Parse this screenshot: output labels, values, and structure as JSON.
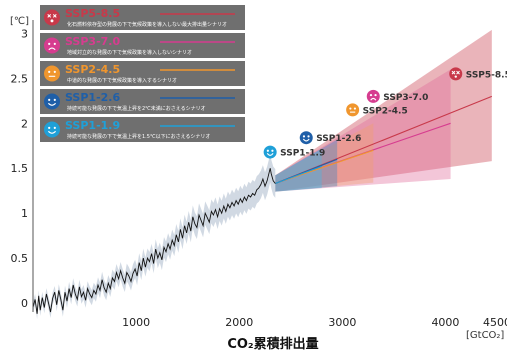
{
  "chart_data": {
    "type": "line",
    "title": "",
    "xlabel": "CO₂累積排出量",
    "x_unit": "[GtCO₂]",
    "ylabel": "",
    "y_unit": "[℃]",
    "xlim": [
      0,
      4500
    ],
    "ylim": [
      -0.1,
      3.15
    ],
    "x_ticks": [
      {
        "value": 1000,
        "label": "1000"
      },
      {
        "value": 2000,
        "label": "2000"
      },
      {
        "value": 3000,
        "label": "3000"
      },
      {
        "value": 4000,
        "label": "4000"
      },
      {
        "value": 4500,
        "label": "4500"
      }
    ],
    "y_ticks": [
      {
        "value": 0,
        "label": "0"
      },
      {
        "value": 0.5,
        "label": "0.5"
      },
      {
        "value": 1,
        "label": "1"
      },
      {
        "value": 1.5,
        "label": "1.5"
      },
      {
        "value": 2,
        "label": "2"
      },
      {
        "value": 2.5,
        "label": "2.5"
      },
      {
        "value": 3,
        "label": "3"
      }
    ],
    "grid": "none",
    "legend_position": "top-left",
    "historical": {
      "color": "#111111",
      "band_color": "#b8c4d4",
      "points": [
        [
          0,
          -0.05
        ],
        [
          20,
          0.04
        ],
        [
          40,
          -0.12
        ],
        [
          55,
          0.08
        ],
        [
          70,
          -0.08
        ],
        [
          90,
          0.06
        ],
        [
          110,
          -0.05
        ],
        [
          130,
          0.1
        ],
        [
          150,
          0.0
        ],
        [
          170,
          -0.1
        ],
        [
          190,
          0.05
        ],
        [
          210,
          0.12
        ],
        [
          230,
          -0.02
        ],
        [
          250,
          0.14
        ],
        [
          270,
          0.04
        ],
        [
          290,
          -0.08
        ],
        [
          310,
          0.12
        ],
        [
          330,
          0.02
        ],
        [
          350,
          0.16
        ],
        [
          370,
          0.06
        ],
        [
          390,
          0.2
        ],
        [
          410,
          0.1
        ],
        [
          430,
          0.04
        ],
        [
          450,
          0.18
        ],
        [
          470,
          0.07
        ],
        [
          490,
          0.12
        ],
        [
          510,
          0.03
        ],
        [
          530,
          0.16
        ],
        [
          550,
          0.1
        ],
        [
          570,
          0.06
        ],
        [
          590,
          0.14
        ],
        [
          610,
          0.1
        ],
        [
          630,
          0.2
        ],
        [
          650,
          0.14
        ],
        [
          670,
          0.26
        ],
        [
          690,
          0.17
        ],
        [
          710,
          0.12
        ],
        [
          730,
          0.22
        ],
        [
          750,
          0.16
        ],
        [
          770,
          0.28
        ],
        [
          790,
          0.24
        ],
        [
          810,
          0.34
        ],
        [
          830,
          0.27
        ],
        [
          850,
          0.36
        ],
        [
          870,
          0.28
        ],
        [
          890,
          0.22
        ],
        [
          910,
          0.34
        ],
        [
          930,
          0.3
        ],
        [
          950,
          0.24
        ],
        [
          970,
          0.33
        ],
        [
          990,
          0.38
        ],
        [
          1010,
          0.3
        ],
        [
          1030,
          0.45
        ],
        [
          1050,
          0.36
        ],
        [
          1070,
          0.5
        ],
        [
          1090,
          0.4
        ],
        [
          1110,
          0.5
        ],
        [
          1130,
          0.46
        ],
        [
          1150,
          0.55
        ],
        [
          1170,
          0.44
        ],
        [
          1190,
          0.6
        ],
        [
          1210,
          0.5
        ],
        [
          1230,
          0.56
        ],
        [
          1250,
          0.48
        ],
        [
          1270,
          0.62
        ],
        [
          1290,
          0.57
        ],
        [
          1310,
          0.66
        ],
        [
          1330,
          0.6
        ],
        [
          1350,
          0.7
        ],
        [
          1370,
          0.64
        ],
        [
          1390,
          0.76
        ],
        [
          1410,
          0.68
        ],
        [
          1430,
          0.82
        ],
        [
          1450,
          0.72
        ],
        [
          1470,
          0.86
        ],
        [
          1490,
          0.78
        ],
        [
          1510,
          0.9
        ],
        [
          1530,
          0.8
        ],
        [
          1550,
          0.96
        ],
        [
          1570,
          0.88
        ],
        [
          1590,
          0.84
        ],
        [
          1610,
          0.98
        ],
        [
          1630,
          0.92
        ],
        [
          1650,
          0.86
        ],
        [
          1670,
          1.0
        ],
        [
          1690,
          0.95
        ],
        [
          1710,
          0.9
        ],
        [
          1730,
          1.02
        ],
        [
          1750,
          0.98
        ],
        [
          1770,
          1.04
        ],
        [
          1790,
          0.96
        ],
        [
          1810,
          1.05
        ],
        [
          1830,
          1.0
        ],
        [
          1850,
          1.08
        ],
        [
          1870,
          1.02
        ],
        [
          1890,
          1.1
        ],
        [
          1910,
          1.06
        ],
        [
          1930,
          1.12
        ],
        [
          1950,
          1.08
        ],
        [
          1970,
          1.14
        ],
        [
          1990,
          1.1
        ],
        [
          2010,
          1.16
        ],
        [
          2030,
          1.12
        ],
        [
          2050,
          1.18
        ],
        [
          2070,
          1.14
        ],
        [
          2090,
          1.2
        ],
        [
          2110,
          1.18
        ],
        [
          2130,
          1.22
        ],
        [
          2150,
          1.2
        ],
        [
          2170,
          1.26
        ],
        [
          2190,
          1.28
        ],
        [
          2210,
          1.32
        ],
        [
          2230,
          1.38
        ],
        [
          2250,
          1.3
        ],
        [
          2270,
          1.36
        ],
        [
          2290,
          1.45
        ],
        [
          2300,
          1.5
        ],
        [
          2310,
          1.44
        ],
        [
          2330,
          1.36
        ],
        [
          2350,
          1.33
        ]
      ]
    },
    "series": [
      {
        "name": "SSP5-8.5",
        "color": "#c8394a",
        "band_color": "#c8394a",
        "mean": [
          [
            2350,
            1.33
          ],
          [
            4450,
            2.3
          ]
        ],
        "upper": [
          [
            2350,
            1.42
          ],
          [
            4450,
            3.04
          ]
        ],
        "lower": [
          [
            2350,
            1.24
          ],
          [
            4450,
            1.58
          ]
        ]
      },
      {
        "name": "SSP3-7.0",
        "color": "#d63c8f",
        "band_color": "#e06a98",
        "mean": [
          [
            2350,
            1.33
          ],
          [
            4050,
            2.0
          ]
        ],
        "upper": [
          [
            2350,
            1.42
          ],
          [
            4050,
            2.6
          ]
        ],
        "lower": [
          [
            2350,
            1.24
          ],
          [
            4050,
            1.38
          ]
        ]
      },
      {
        "name": "SSP2-4.5",
        "color": "#f0962e",
        "band_color": "#f2a06b",
        "mean": [
          [
            2350,
            1.33
          ],
          [
            3300,
            1.7
          ]
        ],
        "upper": [
          [
            2350,
            1.42
          ],
          [
            3300,
            2.0
          ]
        ],
        "lower": [
          [
            2350,
            1.24
          ],
          [
            3300,
            1.34
          ]
        ]
      },
      {
        "name": "SSP1-2.6",
        "color": "#1f5fa8",
        "band_color": "#3d83c2",
        "mean": [
          [
            2350,
            1.33
          ],
          [
            2950,
            1.6
          ]
        ],
        "upper": [
          [
            2350,
            1.42
          ],
          [
            2950,
            1.82
          ]
        ],
        "lower": [
          [
            2350,
            1.24
          ],
          [
            2950,
            1.3
          ]
        ]
      },
      {
        "name": "SSP1-1.9",
        "color": "#1fa0d8",
        "band_color": "#46b8e6",
        "mean": [
          [
            2350,
            1.33
          ],
          [
            2800,
            1.52
          ]
        ],
        "upper": [
          [
            2350,
            1.42
          ],
          [
            2800,
            1.72
          ]
        ],
        "lower": [
          [
            2350,
            1.24
          ],
          [
            2800,
            1.28
          ]
        ]
      }
    ],
    "legend": [
      {
        "name": "SSP5-8.5",
        "color": "#c8394a",
        "icon": "dizzy-face-icon",
        "desc": "化石燃料依存型の発展の下で気候政策を導入しない最大排出量シナリオ"
      },
      {
        "name": "SSP3-7.0",
        "color": "#d63c8f",
        "icon": "sad-face-icon",
        "desc": "地域対立的な発展の下で気候政策を導入しないシナリオ"
      },
      {
        "name": "SSP2-4.5",
        "color": "#f0962e",
        "icon": "neutral-face-icon",
        "desc": "中道的な発展の下で気候政策を導入するシナリオ"
      },
      {
        "name": "SSP1-2.6",
        "color": "#1f5fa8",
        "icon": "smiling-face-icon",
        "desc": "持続可能な発展の下で気温上昇を2℃未満におさえるシナリオ"
      },
      {
        "name": "SSP1-1.9",
        "color": "#1fa0d8",
        "icon": "happy-face-icon",
        "desc": "持続可能な発展の下で気温上昇を1.5℃以下におさえるシナリオ"
      }
    ],
    "annotations": [
      {
        "label": "SSP5-8.5",
        "color": "#c8394a",
        "icon": "dizzy-face-icon",
        "x": 4100,
        "y": 2.55
      },
      {
        "label": "SSP3-7.0",
        "color": "#d63c8f",
        "icon": "sad-face-icon",
        "x": 3300,
        "y": 2.3
      },
      {
        "label": "SSP2-4.5",
        "color": "#f0962e",
        "icon": "neutral-face-icon",
        "x": 3100,
        "y": 2.15
      },
      {
        "label": "SSP1-2.6",
        "color": "#1f5fa8",
        "icon": "smiling-face-icon",
        "x": 2650,
        "y": 1.84
      },
      {
        "label": "SSP1-1.9",
        "color": "#1fa0d8",
        "icon": "happy-face-icon",
        "x": 2300,
        "y": 1.68
      }
    ]
  }
}
